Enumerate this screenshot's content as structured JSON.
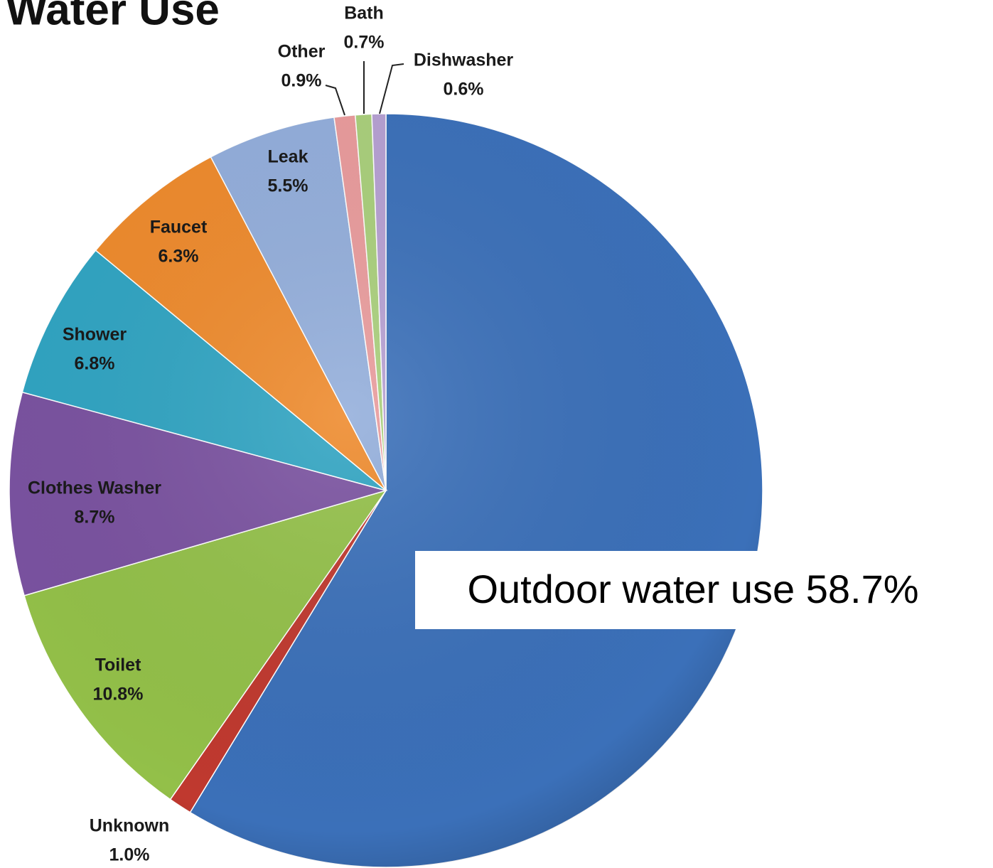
{
  "chart_data": {
    "type": "pie",
    "title": "Water Use",
    "categories": [
      "Outdoor water use",
      "Unknown",
      "Toilet",
      "Clothes Washer",
      "Shower",
      "Faucet",
      "Leak",
      "Other",
      "Bath",
      "Dishwasher"
    ],
    "values": [
      58.7,
      1.0,
      10.8,
      8.7,
      6.8,
      6.3,
      5.5,
      0.9,
      0.7,
      0.6
    ],
    "value_labels": [
      "58.7%",
      "1.0%",
      "10.8%",
      "8.7%",
      "6.8%",
      "6.3%",
      "5.5%",
      "0.9%",
      "0.7%",
      "0.6%"
    ],
    "colors": [
      "#3b70b9",
      "#c0392f",
      "#93c049",
      "#7a52a0",
      "#30a4c2",
      "#ee8a2c",
      "#93aedb",
      "#e99b9c",
      "#a9cf7b",
      "#b6a0d2"
    ]
  }
}
